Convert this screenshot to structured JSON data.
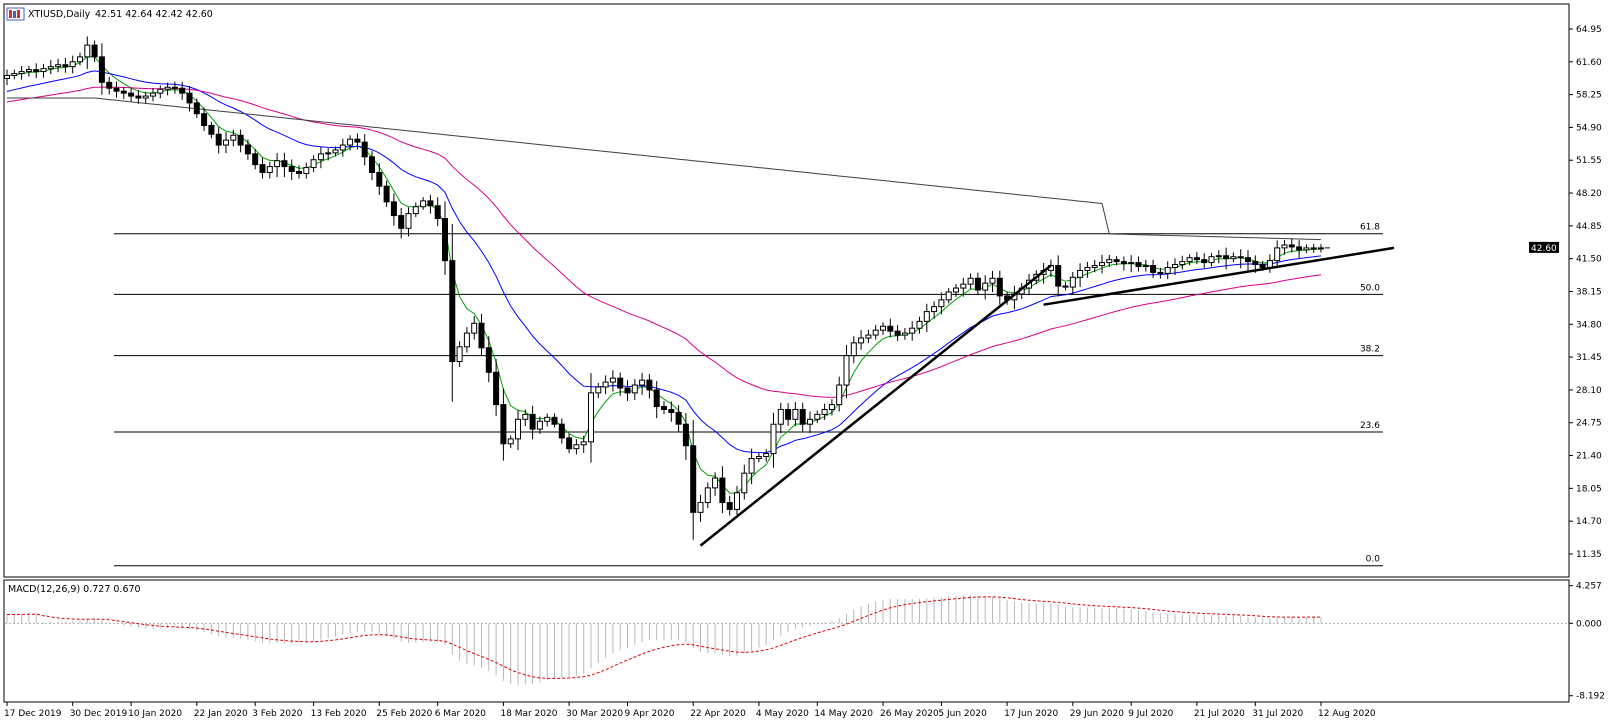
{
  "window": {
    "symbol_title": "XTIUSD,Daily",
    "ohlc_readout": "42.51 42.64 42.42 42.60",
    "current_price_label": "42.60"
  },
  "colors": {
    "background": "#ffffff",
    "bull_candle": "#ffffff",
    "bear_candle": "#000000",
    "candle_outline": "#000000",
    "ma_fast": "#00a000",
    "ma_mid": "#0000ff",
    "ma_slow": "#d6008a",
    "ma_long": "#404040",
    "macd_hist": "#b8b8b8",
    "macd_signal": "#e00000",
    "trendline": "#000000",
    "fib_line": "#000000"
  },
  "chart_data": {
    "type": "candlestick",
    "symbol": "XTIUSD",
    "timeframe": "Daily",
    "price_axis": {
      "ylim": [
        9.0,
        67.5
      ],
      "ticks": [
        "64.95",
        "61.60",
        "58.25",
        "54.90",
        "51.55",
        "48.20",
        "44.85",
        "41.50",
        "38.15",
        "34.80",
        "31.45",
        "28.10",
        "24.75",
        "21.40",
        "18.05",
        "14.70",
        "11.35"
      ],
      "tick_values": [
        64.95,
        61.6,
        58.25,
        54.9,
        51.55,
        48.2,
        44.85,
        41.5,
        38.15,
        34.8,
        31.45,
        28.1,
        24.75,
        21.4,
        18.05,
        14.7,
        11.35
      ]
    },
    "date_axis": {
      "labels": [
        "17 Dec 2019",
        "30 Dec 2019",
        "10 Jan 2020",
        "22 Jan 2020",
        "3 Feb 2020",
        "13 Feb 2020",
        "25 Feb 2020",
        "6 Mar 2020",
        "18 Mar 2020",
        "30 Mar 2020",
        "9 Apr 2020",
        "22 Apr 2020",
        "4 May 2020",
        "14 May 2020",
        "26 May 2020",
        "5 Jun 2020",
        "17 Jun 2020",
        "29 Jun 2020",
        "9 Jul 2020",
        "21 Jul 2020",
        "31 Jul 2020",
        "12 Aug 2020"
      ],
      "label_index": [
        0,
        9,
        17,
        26,
        34,
        42,
        51,
        59,
        68,
        77,
        85,
        94,
        103,
        111,
        120,
        128,
        137,
        146,
        154,
        163,
        171,
        180
      ]
    },
    "closes": [
      60.2,
      60.4,
      60.6,
      60.8,
      60.6,
      60.9,
      61.1,
      61.3,
      61.1,
      61.6,
      62.1,
      63.3,
      62.1,
      59.5,
      58.9,
      58.6,
      58.4,
      58.1,
      57.9,
      58.1,
      58.4,
      58.8,
      59.0,
      58.9,
      58.4,
      57.4,
      56.3,
      55.1,
      54.2,
      53.1,
      53.6,
      54.1,
      53.1,
      52.2,
      51.1,
      50.3,
      50.9,
      51.5,
      50.9,
      50.4,
      50.2,
      50.8,
      51.6,
      52.2,
      52.3,
      52.6,
      53.1,
      53.7,
      53.4,
      51.9,
      50.3,
      48.9,
      47.3,
      45.9,
      44.6,
      46.1,
      46.8,
      47.4,
      46.9,
      45.6,
      41.3,
      31.0,
      32.5,
      33.9,
      34.9,
      32.4,
      29.9,
      26.6,
      22.6,
      23.1,
      25.1,
      25.6,
      24.1,
      24.9,
      25.3,
      24.6,
      23.2,
      22.1,
      22.5,
      22.8,
      27.8,
      28.4,
      28.9,
      29.3,
      28.3,
      27.8,
      28.6,
      29.1,
      28.1,
      26.4,
      26.1,
      25.8,
      24.6,
      22.4,
      15.6,
      16.6,
      18.1,
      19.1,
      16.6,
      15.9,
      17.6,
      19.6,
      21.1,
      21.3,
      21.6,
      24.6,
      26.1,
      25.1,
      26.1,
      24.6,
      25.1,
      25.6,
      26.1,
      26.6,
      28.6,
      31.6,
      32.9,
      33.4,
      33.7,
      34.2,
      34.6,
      34.1,
      33.7,
      33.9,
      34.4,
      35.1,
      36.1,
      36.6,
      37.3,
      38.1,
      38.5,
      38.9,
      39.5,
      38.3,
      39.0,
      39.5,
      37.7,
      37.3,
      37.9,
      38.5,
      39.3,
      39.9,
      40.3,
      40.8,
      38.7,
      38.6,
      39.6,
      40.3,
      40.6,
      40.8,
      41.1,
      41.4,
      41.2,
      41.0,
      41.1,
      40.7,
      40.8,
      40.1,
      40.0,
      40.6,
      40.9,
      41.2,
      41.6,
      41.4,
      41.1,
      41.7,
      41.8,
      41.5,
      41.7,
      41.6,
      41.2,
      40.9,
      40.6,
      41.3,
      42.6,
      42.9,
      42.7,
      42.4,
      42.6,
      42.5,
      42.6
    ],
    "moving_averages": [
      {
        "period": 5,
        "style": "green"
      },
      {
        "period": 20,
        "style": "blue"
      },
      {
        "period": 50,
        "style": "magenta"
      },
      {
        "period": 200,
        "style": "dark-gray"
      }
    ],
    "fib_levels": [
      {
        "label": "61.8",
        "price": 44.05
      },
      {
        "label": "50.0",
        "price": 37.85
      },
      {
        "label": "38.2",
        "price": 31.6
      },
      {
        "label": "23.6",
        "price": 23.8
      },
      {
        "label": "0.0",
        "price": 10.15
      }
    ],
    "trendlines": [
      {
        "from": {
          "index": 95,
          "price": 12.2
        },
        "to": {
          "index": 143,
          "price": 40.8
        }
      },
      {
        "from": {
          "index": 142,
          "price": 36.8
        },
        "to": {
          "index": 190,
          "price": 42.6
        }
      }
    ],
    "macd": {
      "label": "MACD(12,26,9) 0.727 0.670",
      "params": [
        12,
        26,
        9
      ],
      "value": 0.727,
      "signal_value": 0.67,
      "ylim": [
        -8.9,
        4.9
      ],
      "ticks": [
        "4.257",
        "0.000",
        "-8.192"
      ],
      "tick_values": [
        4.257,
        0.0,
        -8.192
      ]
    }
  }
}
